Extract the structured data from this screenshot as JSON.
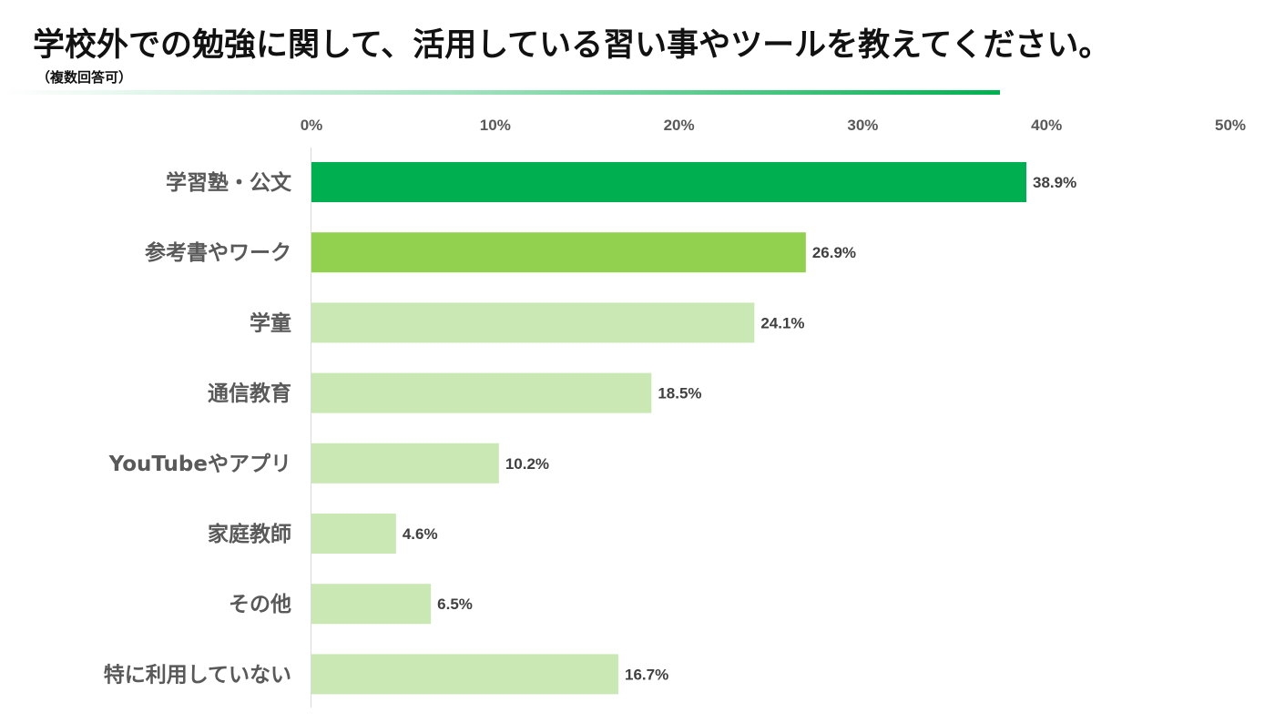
{
  "header": {
    "title": "学校外での勉強に関して、活用している習い事やツールを教えてください。",
    "note": "（複数回答可）"
  },
  "colors": {
    "rule": "#00b050",
    "axis": "#d9d9d9",
    "bar_top": "#00b050",
    "bar_second": "#92d050",
    "bar_other": "#c9e8b3"
  },
  "chart_data": {
    "type": "bar",
    "orientation": "horizontal",
    "categories": [
      "学習塾・公文",
      "参考書やワーク",
      "学童",
      "通信教育",
      "YouTubeやアプリ",
      "家庭教師",
      "その他",
      "特に利用していない"
    ],
    "values": [
      38.9,
      26.9,
      24.1,
      18.5,
      10.2,
      4.6,
      6.5,
      16.7
    ],
    "value_labels": [
      "38.9%",
      "26.9%",
      "24.1%",
      "18.5%",
      "10.2%",
      "4.6%",
      "6.5%",
      "16.7%"
    ],
    "bar_colors": [
      "#00b050",
      "#92d050",
      "#c9e8b3",
      "#c9e8b3",
      "#c9e8b3",
      "#c9e8b3",
      "#c9e8b3",
      "#c9e8b3"
    ],
    "xlim": [
      0,
      50
    ],
    "x_ticks": [
      0,
      10,
      20,
      30,
      40,
      50
    ],
    "x_tick_labels": [
      "0%",
      "10%",
      "20%",
      "30%",
      "40%",
      "50%"
    ],
    "x_axis_position": "top",
    "grid": false,
    "legend": "none"
  }
}
